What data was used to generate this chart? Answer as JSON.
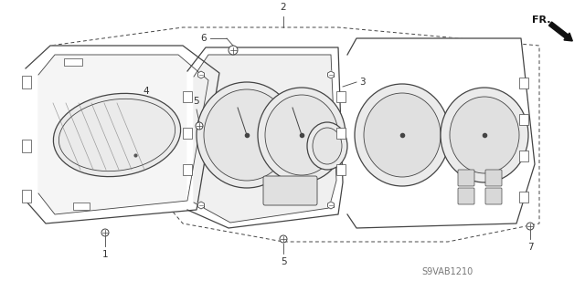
{
  "bg_color": "#ffffff",
  "line_color": "#444444",
  "text_color": "#333333",
  "fig_width": 6.4,
  "fig_height": 3.19,
  "dpi": 100,
  "watermark": "S9VAB1210"
}
